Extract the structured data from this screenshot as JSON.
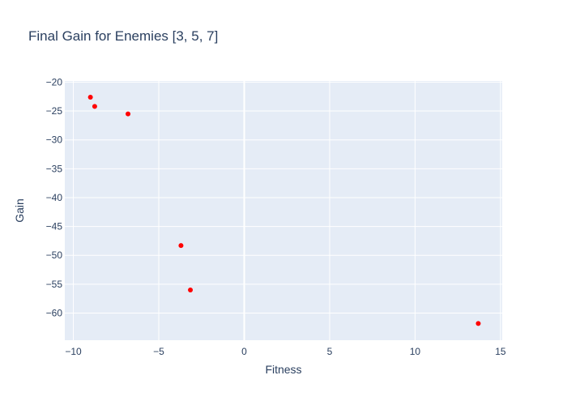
{
  "chart_data": {
    "type": "scatter",
    "title": "Final Gain for Enemies [3, 5, 7]",
    "xlabel": "Fitness",
    "ylabel": "Gain",
    "xlim": [
      -10.5,
      15.1
    ],
    "ylim": [
      -64.7,
      -19.8
    ],
    "x_ticks": [
      -10,
      -5,
      0,
      5,
      10,
      15
    ],
    "y_ticks": [
      -20,
      -25,
      -30,
      -35,
      -40,
      -45,
      -50,
      -55,
      -60
    ],
    "x_tick_labels": [
      "−10",
      "−5",
      "0",
      "5",
      "10",
      "15"
    ],
    "y_tick_labels": [
      "−20",
      "−25",
      "−30",
      "−35",
      "−40",
      "−45",
      "−50",
      "−55",
      "−60"
    ],
    "grid": true,
    "marker_color": "#ff0000",
    "plot_background": "#e5ecf6",
    "points": [
      {
        "x": -9.0,
        "y": -22.6
      },
      {
        "x": -8.75,
        "y": -24.2
      },
      {
        "x": -6.8,
        "y": -25.5
      },
      {
        "x": -3.7,
        "y": -48.3
      },
      {
        "x": -3.15,
        "y": -56.0
      },
      {
        "x": 13.7,
        "y": -61.8
      }
    ]
  }
}
